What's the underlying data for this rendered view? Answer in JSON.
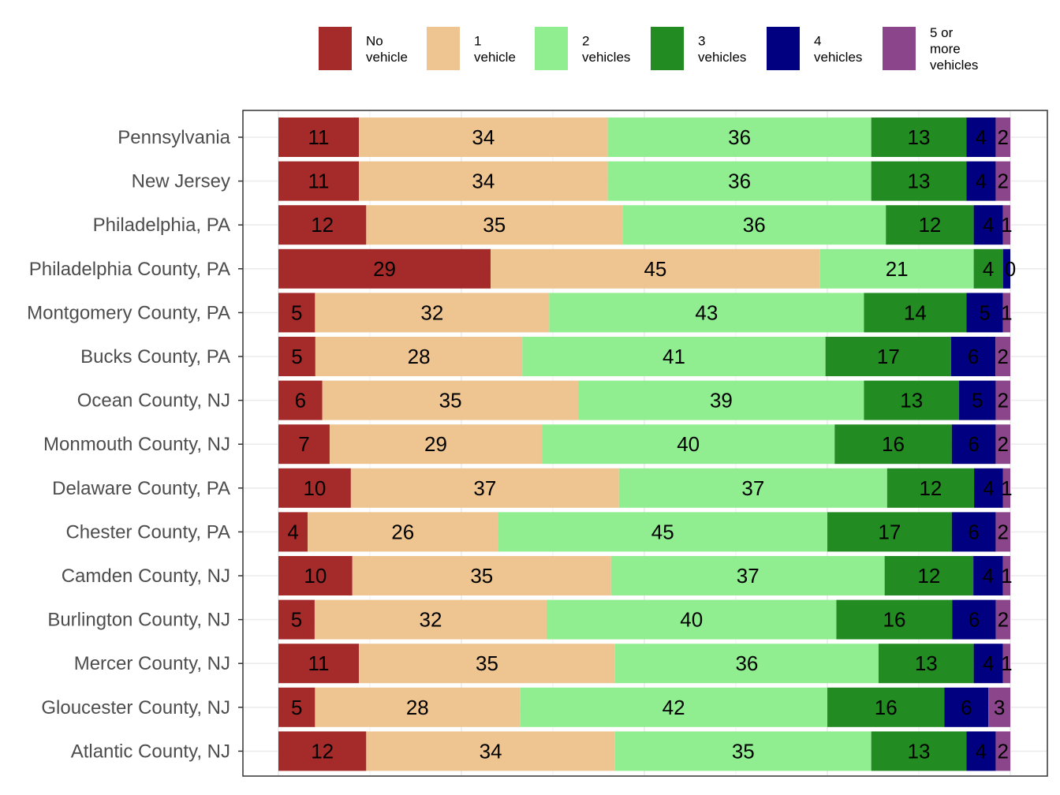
{
  "chart_data": {
    "type": "bar",
    "orientation": "horizontal",
    "stacked": true,
    "grid": true,
    "legend_position": "top",
    "categories": [
      "Pennsylvania",
      "New Jersey",
      "Philadelphia, PA",
      "Philadelphia County, PA",
      "Montgomery County, PA",
      "Bucks County, PA",
      "Ocean County, NJ",
      "Monmouth County, NJ",
      "Delaware County, PA",
      "Chester County, PA",
      "Camden County, NJ",
      "Burlington County, NJ",
      "Mercer County, NJ",
      "Gloucester County, NJ",
      "Atlantic County, NJ"
    ],
    "series": [
      {
        "name": "No vehicle",
        "legend_lines": [
          "No",
          "vehicle"
        ],
        "color": "#A52A2A",
        "values": [
          11,
          11,
          12,
          29,
          5,
          5,
          6,
          7,
          10,
          4,
          10,
          5,
          11,
          5,
          12
        ]
      },
      {
        "name": "1 vehicle",
        "legend_lines": [
          "1",
          "vehicle"
        ],
        "color": "#EEC591",
        "values": [
          34,
          34,
          35,
          45,
          32,
          28,
          35,
          29,
          37,
          26,
          35,
          32,
          35,
          28,
          34
        ]
      },
      {
        "name": "2 vehicles",
        "legend_lines": [
          "2",
          "vehicles"
        ],
        "color": "#90EE90",
        "values": [
          36,
          36,
          36,
          21,
          43,
          41,
          39,
          40,
          37,
          45,
          37,
          40,
          36,
          42,
          35
        ]
      },
      {
        "name": "3 vehicles",
        "legend_lines": [
          "3",
          "vehicles"
        ],
        "color": "#228B22",
        "values": [
          13,
          13,
          12,
          4,
          14,
          17,
          13,
          16,
          12,
          17,
          12,
          16,
          13,
          16,
          13
        ]
      },
      {
        "name": "4 vehicles",
        "legend_lines": [
          "4",
          "vehicles"
        ],
        "color": "#000080",
        "values": [
          4,
          4,
          4,
          1,
          5,
          6,
          5,
          6,
          4,
          6,
          4,
          6,
          4,
          6,
          4
        ]
      },
      {
        "name": "5 or more vehicles",
        "legend_lines": [
          "5 or",
          "more",
          "vehicles"
        ],
        "color": "#8B468B",
        "values": [
          2,
          2,
          1,
          0,
          1,
          2,
          2,
          2,
          1,
          2,
          1,
          2,
          1,
          3,
          2
        ]
      }
    ],
    "data_labels": [
      [
        11,
        34,
        36,
        13,
        4,
        2
      ],
      [
        11,
        34,
        36,
        13,
        4,
        2
      ],
      [
        12,
        35,
        36,
        12,
        4,
        1
      ],
      [
        29,
        45,
        21,
        4,
        "",
        0
      ],
      [
        5,
        32,
        43,
        14,
        5,
        1
      ],
      [
        5,
        28,
        41,
        17,
        6,
        2
      ],
      [
        6,
        35,
        39,
        13,
        5,
        2
      ],
      [
        7,
        29,
        40,
        16,
        6,
        2
      ],
      [
        10,
        37,
        37,
        12,
        4,
        1
      ],
      [
        4,
        26,
        45,
        17,
        6,
        2
      ],
      [
        10,
        35,
        37,
        12,
        4,
        1
      ],
      [
        5,
        32,
        40,
        16,
        6,
        2
      ],
      [
        11,
        35,
        36,
        13,
        4,
        1
      ],
      [
        5,
        28,
        42,
        16,
        6,
        3
      ],
      [
        12,
        34,
        35,
        13,
        4,
        2
      ]
    ]
  }
}
